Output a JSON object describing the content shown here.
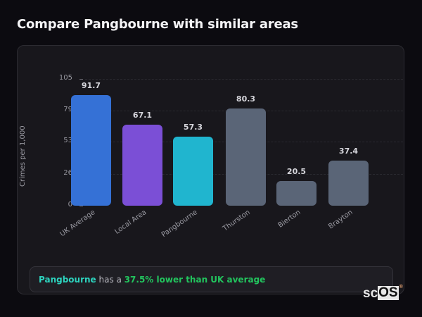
{
  "page": {
    "title": "Compare Pangbourne with similar areas"
  },
  "chart_data": {
    "type": "bar",
    "title": "Compare Pangbourne with similar areas",
    "xlabel": "",
    "ylabel": "Crimes per 1,000",
    "ylim": [
      0,
      105
    ],
    "yticks": [
      0,
      26,
      53,
      79,
      105
    ],
    "grid": true,
    "categories": [
      "UK Average",
      "Local Area",
      "Pangbourne",
      "Thurston",
      "Bierton",
      "Brayton"
    ],
    "values": [
      91.7,
      67.1,
      57.3,
      80.3,
      20.5,
      37.4
    ],
    "value_labels": [
      "91.7",
      "67.1",
      "57.3",
      "80.3",
      "20.5",
      "37.4"
    ],
    "colors": [
      "#3571d6",
      "#7b4fd6",
      "#20b5cf",
      "#5a6577",
      "#5a6577",
      "#5a6577"
    ]
  },
  "insight": {
    "place": "Pangbourne",
    "connector": " has a ",
    "stat": "37.5% lower than UK average"
  },
  "watermark": {
    "prefix": "sc",
    "suffix": "OS",
    "reg": "®"
  }
}
